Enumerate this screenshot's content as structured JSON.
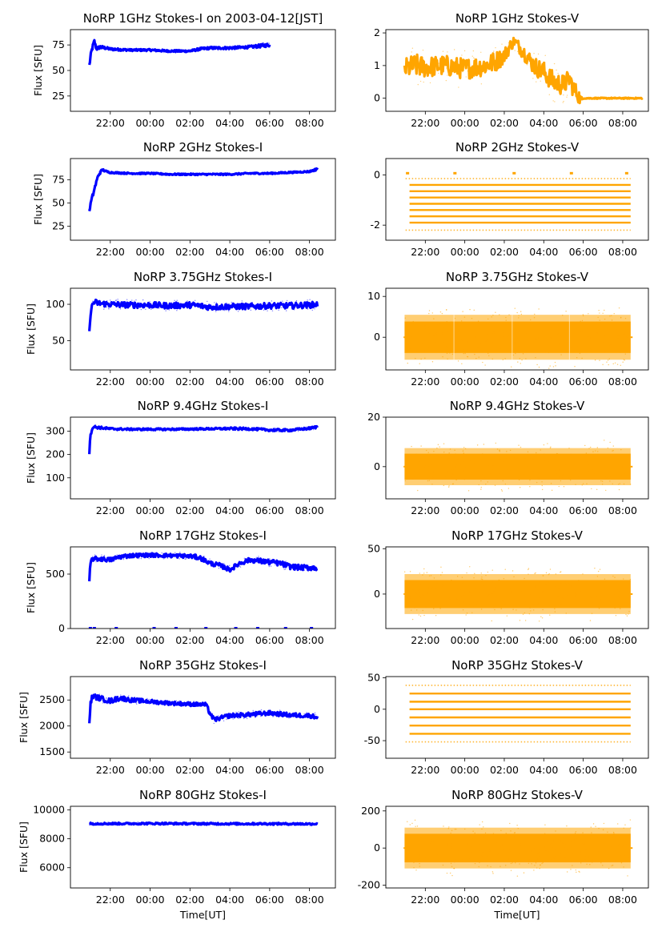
{
  "figure": {
    "xlabel": "Time[UT]"
  },
  "chart_data": [
    {
      "id": "1ghz-i",
      "type": "scatter",
      "title": "NoRP 1GHz Stokes-I on 2003-04-12[JST]",
      "ylabel": "Flux [SFU]",
      "xlabel": "",
      "color": "#0000ff",
      "xlim": [
        20.0,
        33.3
      ],
      "ylim": [
        10,
        90
      ],
      "yticks": [
        25,
        50,
        75
      ],
      "xticks": [
        22,
        24,
        26,
        28,
        30,
        32
      ],
      "xticklabels": [
        "22:00",
        "00:00",
        "02:00",
        "04:00",
        "06:00",
        "08:00"
      ],
      "series": [
        {
          "name": "Stokes-I",
          "x": [
            20.95,
            21.0,
            21.05,
            21.1,
            21.2,
            21.3,
            21.5,
            22.0,
            23.0,
            24.0,
            25.0,
            26.0,
            26.5,
            27.0,
            28.0,
            29.0,
            29.5,
            30.0
          ],
          "y": [
            55,
            62,
            68,
            72,
            79,
            71,
            73,
            71,
            70,
            70,
            69,
            69,
            71,
            72,
            72,
            73,
            74,
            75
          ],
          "spread": [
            2,
            3,
            3,
            3,
            2,
            2,
            2,
            1.5,
            1.2,
            1.2,
            1.2,
            1.2,
            1.5,
            1.5,
            1.5,
            1.5,
            2,
            2
          ]
        }
      ]
    },
    {
      "id": "1ghz-v",
      "type": "scatter",
      "title": "NoRP 1GHz Stokes-V",
      "ylabel": "",
      "xlabel": "",
      "color": "#ffa500",
      "xlim": [
        20.0,
        33.3
      ],
      "ylim": [
        -0.4,
        2.1
      ],
      "yticks": [
        0,
        1,
        2
      ],
      "xticks": [
        22,
        24,
        26,
        28,
        30,
        32
      ],
      "xticklabels": [
        "22:00",
        "00:00",
        "02:00",
        "04:00",
        "06:00",
        "08:00"
      ],
      "series": [
        {
          "name": "Stokes-V",
          "x": [
            20.95,
            21.5,
            22.0,
            23.0,
            24.0,
            25.0,
            25.5,
            26.0,
            26.3,
            26.5,
            27.0,
            27.5,
            28.0,
            28.5,
            29.0,
            29.3,
            29.5,
            29.75,
            29.9,
            30.0,
            31.0,
            32.0,
            33.0
          ],
          "y": [
            0.9,
            1.0,
            0.95,
            1.0,
            0.9,
            1.0,
            1.1,
            1.3,
            1.6,
            1.75,
            1.4,
            1.0,
            0.8,
            0.5,
            0.4,
            0.6,
            0.3,
            0.1,
            -0.1,
            0,
            0,
            0,
            0
          ],
          "spread": [
            0.4,
            0.45,
            0.4,
            0.4,
            0.4,
            0.4,
            0.4,
            0.3,
            0.25,
            0.2,
            0.3,
            0.35,
            0.4,
            0.4,
            0.4,
            0.35,
            0.35,
            0.3,
            0.2,
            0.02,
            0.02,
            0.02,
            0.02
          ]
        }
      ]
    },
    {
      "id": "2ghz-i",
      "type": "scatter",
      "title": "NoRP 2GHz Stokes-I",
      "ylabel": "Flux [SFU]",
      "xlabel": "",
      "color": "#0000ff",
      "xlim": [
        20.0,
        33.3
      ],
      "ylim": [
        10,
        98
      ],
      "yticks": [
        25,
        50,
        75
      ],
      "xticks": [
        22,
        24,
        26,
        28,
        30,
        32
      ],
      "xticklabels": [
        "22:00",
        "00:00",
        "02:00",
        "04:00",
        "06:00",
        "08:00"
      ],
      "series": [
        {
          "name": "Stokes-I",
          "x": [
            20.95,
            21.0,
            21.2,
            21.4,
            21.6,
            21.8,
            22.0,
            23.0,
            24.0,
            25.0,
            26.0,
            27.0,
            28.0,
            29.0,
            30.0,
            31.0,
            32.0,
            32.3,
            32.4
          ],
          "y": [
            40,
            48,
            65,
            80,
            86,
            84,
            83,
            82,
            82,
            81,
            81,
            81,
            81,
            82,
            82,
            83,
            84,
            86,
            88
          ],
          "spread": [
            2,
            3,
            3,
            2,
            1.5,
            1.2,
            1,
            1,
            1,
            1,
            1,
            1,
            1,
            1,
            1,
            1,
            1,
            1.5,
            2
          ]
        }
      ]
    },
    {
      "id": "2ghz-v",
      "type": "scatter",
      "title": "NoRP 2GHz Stokes-V",
      "ylabel": "",
      "xlabel": "",
      "color": "#ffa500",
      "xlim": [
        20.0,
        33.3
      ],
      "ylim": [
        -2.6,
        0.65
      ],
      "yticks": [
        -2,
        0
      ],
      "xticks": [
        22,
        24,
        26,
        28,
        30,
        32
      ],
      "xticklabels": [
        "22:00",
        "00:00",
        "02:00",
        "04:00",
        "06:00",
        "08:00"
      ],
      "levels": [
        -0.15,
        -0.4,
        -0.65,
        -0.9,
        -1.15,
        -1.4,
        -1.65,
        -1.9,
        -2.2
      ],
      "level_range": [
        21.2,
        32.4
      ]
    },
    {
      "id": "375ghz-i",
      "type": "scatter",
      "title": "NoRP 3.75GHz Stokes-I",
      "ylabel": "Flux [SFU]",
      "xlabel": "",
      "color": "#0000ff",
      "xlim": [
        20.0,
        33.3
      ],
      "ylim": [
        10,
        122
      ],
      "yticks": [
        50,
        100
      ],
      "xticks": [
        22,
        24,
        26,
        28,
        30,
        32
      ],
      "xticklabels": [
        "22:00",
        "00:00",
        "02:00",
        "04:00",
        "06:00",
        "08:00"
      ],
      "series": [
        {
          "name": "Stokes-I",
          "x": [
            20.95,
            21.0,
            21.1,
            21.2,
            21.5,
            22.0,
            23.0,
            24.0,
            25.0,
            26.0,
            26.5,
            27.0,
            28.0,
            29.0,
            30.0,
            31.0,
            32.0,
            32.4
          ],
          "y": [
            62,
            85,
            100,
            103,
            101,
            100,
            99,
            99,
            98,
            99,
            98,
            96,
            97,
            97,
            98,
            98,
            99,
            100
          ],
          "spread": [
            2,
            4,
            4,
            5,
            5,
            5,
            5,
            5,
            5,
            5,
            5,
            5,
            5,
            5,
            5,
            5,
            5,
            5
          ]
        }
      ]
    },
    {
      "id": "375ghz-v",
      "type": "scatter",
      "title": "NoRP 3.75GHz Stokes-V",
      "ylabel": "",
      "xlabel": "",
      "color": "#ffa500",
      "xlim": [
        20.0,
        33.3
      ],
      "ylim": [
        -8,
        12
      ],
      "yticks": [
        0,
        10
      ],
      "xticks": [
        22,
        24,
        26,
        28,
        30,
        32
      ],
      "xticklabels": [
        "22:00",
        "00:00",
        "02:00",
        "04:00",
        "06:00",
        "08:00"
      ],
      "band": {
        "from": 20.95,
        "to": 32.4,
        "center": 0,
        "half": 5.5,
        "gaps": [
          23.45,
          26.4,
          29.3
        ]
      }
    },
    {
      "id": "94ghz-i",
      "type": "scatter",
      "title": "NoRP 9.4GHz Stokes-I",
      "ylabel": "Flux [SFU]",
      "xlabel": "",
      "color": "#0000ff",
      "xlim": [
        20.0,
        33.3
      ],
      "ylim": [
        10,
        360
      ],
      "yticks": [
        100,
        200,
        300
      ],
      "xticks": [
        22,
        24,
        26,
        28,
        30,
        32
      ],
      "xticklabels": [
        "22:00",
        "00:00",
        "02:00",
        "04:00",
        "06:00",
        "08:00"
      ],
      "series": [
        {
          "name": "Stokes-I",
          "x": [
            20.95,
            21.0,
            21.1,
            21.2,
            22.0,
            23.0,
            24.0,
            25.0,
            26.0,
            27.0,
            28.0,
            29.0,
            30.0,
            31.0,
            32.0,
            32.4
          ],
          "y": [
            205,
            280,
            315,
            318,
            310,
            308,
            308,
            308,
            309,
            310,
            311,
            310,
            305,
            304,
            312,
            318
          ],
          "spread": [
            5,
            8,
            8,
            7,
            6,
            5,
            5,
            5,
            5,
            5,
            6,
            6,
            6,
            6,
            6,
            7
          ]
        }
      ]
    },
    {
      "id": "94ghz-v",
      "type": "scatter",
      "title": "NoRP 9.4GHz Stokes-V",
      "ylabel": "",
      "xlabel": "",
      "color": "#ffa500",
      "xlim": [
        20.0,
        33.3
      ],
      "ylim": [
        -13,
        20
      ],
      "yticks": [
        0,
        20
      ],
      "xticks": [
        22,
        24,
        26,
        28,
        30,
        32
      ],
      "xticklabels": [
        "22:00",
        "00:00",
        "02:00",
        "04:00",
        "06:00",
        "08:00"
      ],
      "band": {
        "from": 20.95,
        "to": 32.4,
        "center": 0,
        "half": 7.5,
        "gaps": []
      }
    },
    {
      "id": "17ghz-i",
      "type": "scatter",
      "title": "NoRP 17GHz Stokes-I",
      "ylabel": "Flux [SFU]",
      "xlabel": "",
      "color": "#0000ff",
      "xlim": [
        20.0,
        33.3
      ],
      "ylim": [
        0,
        750
      ],
      "yticks": [
        0,
        500
      ],
      "xticks": [
        22,
        24,
        26,
        28,
        30,
        32
      ],
      "xticklabels": [
        "22:00",
        "00:00",
        "02:00",
        "04:00",
        "06:00",
        "08:00"
      ],
      "series": [
        {
          "name": "Stokes-I",
          "x": [
            20.95,
            21.0,
            21.1,
            21.5,
            22.0,
            22.5,
            23.0,
            24.0,
            25.0,
            26.0,
            26.5,
            27.0,
            27.5,
            28.0,
            28.5,
            29.0,
            29.5,
            30.0,
            30.5,
            31.0,
            31.5,
            32.0,
            32.4
          ],
          "y": [
            420,
            600,
            640,
            640,
            630,
            660,
            670,
            675,
            670,
            665,
            650,
            600,
            580,
            540,
            600,
            630,
            620,
            610,
            600,
            570,
            560,
            560,
            555
          ],
          "spread": [
            20,
            25,
            25,
            25,
            25,
            25,
            22,
            22,
            22,
            22,
            25,
            25,
            25,
            25,
            25,
            25,
            30,
            30,
            30,
            30,
            30,
            30,
            30
          ]
        }
      ],
      "spikes": {
        "x": [
          21.0,
          21.2,
          22.3,
          24.2,
          25.3,
          26.8,
          28.3,
          29.4,
          30.8,
          32.1
        ],
        "y": 0
      }
    },
    {
      "id": "17ghz-v",
      "type": "scatter",
      "title": "NoRP 17GHz Stokes-V",
      "ylabel": "",
      "xlabel": "",
      "color": "#ffa500",
      "xlim": [
        20.0,
        33.3
      ],
      "ylim": [
        -38,
        52
      ],
      "yticks": [
        0,
        50
      ],
      "xticks": [
        22,
        24,
        26,
        28,
        30,
        32
      ],
      "xticklabels": [
        "22:00",
        "00:00",
        "02:00",
        "04:00",
        "06:00",
        "08:00"
      ],
      "band": {
        "from": 20.95,
        "to": 32.4,
        "center": 0,
        "half": 22,
        "gaps": []
      }
    },
    {
      "id": "35ghz-i",
      "type": "scatter",
      "title": "NoRP 35GHz Stokes-I",
      "ylabel": "Flux [SFU]",
      "xlabel": "",
      "color": "#0000ff",
      "xlim": [
        20.0,
        33.3
      ],
      "ylim": [
        1380,
        2950
      ],
      "yticks": [
        1500,
        2000,
        2500
      ],
      "xticks": [
        22,
        24,
        26,
        28,
        30,
        32
      ],
      "xticklabels": [
        "22:00",
        "00:00",
        "02:00",
        "04:00",
        "06:00",
        "08:00"
      ],
      "series": [
        {
          "name": "Stokes-I",
          "x": [
            20.95,
            21.0,
            21.1,
            21.5,
            22.0,
            22.5,
            23.0,
            24.0,
            25.0,
            26.0,
            26.8,
            27.0,
            27.2,
            28.0,
            29.0,
            30.0,
            31.0,
            32.0,
            32.4
          ],
          "y": [
            2050,
            2400,
            2580,
            2530,
            2480,
            2540,
            2500,
            2470,
            2440,
            2420,
            2410,
            2250,
            2120,
            2200,
            2220,
            2250,
            2210,
            2200,
            2170
          ],
          "spread": [
            40,
            60,
            60,
            60,
            60,
            60,
            50,
            45,
            45,
            45,
            45,
            60,
            50,
            50,
            50,
            50,
            50,
            50,
            50
          ]
        }
      ]
    },
    {
      "id": "35ghz-v",
      "type": "scatter",
      "title": "NoRP 35GHz Stokes-V",
      "ylabel": "",
      "xlabel": "",
      "color": "#ffa500",
      "xlim": [
        20.0,
        33.3
      ],
      "ylim": [
        -78,
        52
      ],
      "yticks": [
        -50,
        0,
        50
      ],
      "xticks": [
        22,
        24,
        26,
        28,
        30,
        32
      ],
      "xticklabels": [
        "22:00",
        "00:00",
        "02:00",
        "04:00",
        "06:00",
        "08:00"
      ],
      "levels": [
        38,
        25,
        12,
        0,
        -13,
        -26,
        -39,
        -52
      ],
      "level_range": [
        21.2,
        32.4
      ]
    },
    {
      "id": "80ghz-i",
      "type": "scatter",
      "title": "NoRP 80GHz Stokes-I",
      "ylabel": "Flux [SFU]",
      "xlabel": "Time[UT]",
      "color": "#0000ff",
      "xlim": [
        20.0,
        33.3
      ],
      "ylim": [
        4600,
        10250
      ],
      "yticks": [
        6000,
        8000,
        10000
      ],
      "xticks": [
        22,
        24,
        26,
        28,
        30,
        32
      ],
      "xticklabels": [
        "22:00",
        "00:00",
        "02:00",
        "04:00",
        "06:00",
        "08:00"
      ],
      "series": [
        {
          "name": "Stokes-I",
          "x": [
            20.95,
            22.0,
            24.0,
            26.0,
            28.0,
            30.0,
            32.0,
            32.4
          ],
          "y": [
            9050,
            9050,
            9060,
            9050,
            9040,
            9040,
            9030,
            9040
          ],
          "spread": [
            80,
            80,
            80,
            80,
            80,
            80,
            80,
            80
          ]
        }
      ]
    },
    {
      "id": "80ghz-v",
      "type": "scatter",
      "title": "NoRP 80GHz Stokes-V",
      "ylabel": "",
      "xlabel": "Time[UT]",
      "color": "#ffa500",
      "xlim": [
        20.0,
        33.3
      ],
      "ylim": [
        -215,
        225
      ],
      "yticks": [
        -200,
        0,
        200
      ],
      "xticks": [
        22,
        24,
        26,
        28,
        30,
        32
      ],
      "xticklabels": [
        "22:00",
        "00:00",
        "02:00",
        "04:00",
        "06:00",
        "08:00"
      ],
      "band": {
        "from": 20.95,
        "to": 32.4,
        "center": 0,
        "half": 110,
        "gaps": []
      }
    }
  ]
}
